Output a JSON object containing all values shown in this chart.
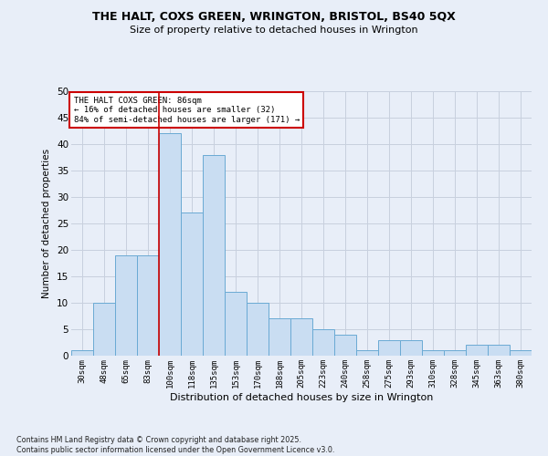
{
  "title_line1": "THE HALT, COXS GREEN, WRINGTON, BRISTOL, BS40 5QX",
  "title_line2": "Size of property relative to detached houses in Wrington",
  "xlabel": "Distribution of detached houses by size in Wrington",
  "ylabel": "Number of detached properties",
  "categories": [
    "30sqm",
    "48sqm",
    "65sqm",
    "83sqm",
    "100sqm",
    "118sqm",
    "135sqm",
    "153sqm",
    "170sqm",
    "188sqm",
    "205sqm",
    "223sqm",
    "240sqm",
    "258sqm",
    "275sqm",
    "293sqm",
    "310sqm",
    "328sqm",
    "345sqm",
    "363sqm",
    "380sqm"
  ],
  "values": [
    1,
    10,
    19,
    19,
    42,
    27,
    38,
    12,
    10,
    7,
    7,
    5,
    4,
    1,
    3,
    3,
    1,
    1,
    2,
    2,
    1
  ],
  "bar_color": "#c9ddf2",
  "bar_edge_color": "#6aaad4",
  "grid_color": "#c8d0de",
  "vline_x_index": 3.5,
  "vline_color": "#cc0000",
  "annotation_box_text": "THE HALT COXS GREEN: 86sqm\n← 16% of detached houses are smaller (32)\n84% of semi-detached houses are larger (171) →",
  "annotation_box_color": "#cc0000",
  "annotation_bg": "white",
  "ylim": [
    0,
    50
  ],
  "yticks": [
    0,
    5,
    10,
    15,
    20,
    25,
    30,
    35,
    40,
    45,
    50
  ],
  "footnote": "Contains HM Land Registry data © Crown copyright and database right 2025.\nContains public sector information licensed under the Open Government Licence v3.0.",
  "bg_color": "#e8eef8"
}
